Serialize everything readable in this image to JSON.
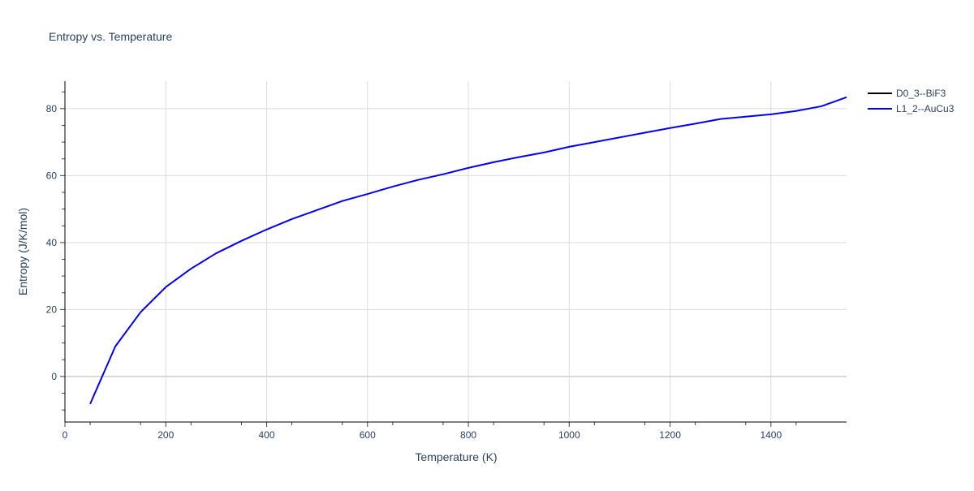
{
  "chart_data": {
    "type": "line",
    "title": "Entropy vs. Temperature",
    "xlabel": "Temperature (K)",
    "ylabel": "Entropy (J/K/mol)",
    "xlim": [
      0,
      1550
    ],
    "ylim": [
      -13.6,
      88.2
    ],
    "xticks": [
      0,
      200,
      400,
      600,
      800,
      1000,
      1200,
      1400
    ],
    "yticks": [
      0,
      20,
      40,
      60,
      80
    ],
    "grid": true,
    "legend_position": "top-right",
    "series": [
      {
        "name": "D0_3--BiF3",
        "color": "#000000",
        "x": [],
        "y": []
      },
      {
        "name": "L1_2--AuCu3",
        "color": "#0000ff",
        "x": [
          50,
          100,
          150,
          200,
          250,
          300,
          350,
          400,
          450,
          500,
          550,
          600,
          650,
          700,
          750,
          800,
          850,
          900,
          950,
          1000,
          1050,
          1100,
          1150,
          1200,
          1250,
          1300,
          1350,
          1400,
          1450,
          1500,
          1550
        ],
        "y": [
          -8.2,
          9.0,
          19.2,
          26.7,
          32.2,
          36.8,
          40.5,
          43.9,
          47.0,
          49.7,
          52.4,
          54.5,
          56.7,
          58.7,
          60.4,
          62.3,
          64.0,
          65.5,
          66.9,
          68.6,
          70.0,
          71.4,
          72.8,
          74.2,
          75.5,
          76.9,
          77.6,
          78.3,
          79.3,
          80.7,
          83.4
        ]
      }
    ]
  }
}
